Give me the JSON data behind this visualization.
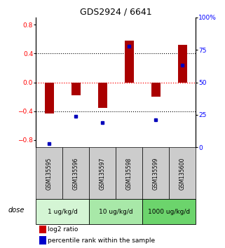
{
  "title": "GDS2924 / 6641",
  "samples": [
    "GSM135595",
    "GSM135596",
    "GSM135597",
    "GSM135598",
    "GSM135599",
    "GSM135600"
  ],
  "log2_ratio": [
    -0.43,
    -0.18,
    -0.35,
    0.58,
    -0.2,
    0.52
  ],
  "percentile_rank": [
    3,
    24,
    19,
    78,
    21,
    63
  ],
  "dose_groups": [
    {
      "label": "1 ug/kg/d",
      "color": "#d4f5d4"
    },
    {
      "label": "10 ug/kg/d",
      "color": "#a8e8a8"
    },
    {
      "label": "1000 ug/kg/d",
      "color": "#6cd46c"
    }
  ],
  "ylim": [
    -0.9,
    0.9
  ],
  "y2lim": [
    0,
    100
  ],
  "yticks": [
    -0.8,
    -0.4,
    0.0,
    0.4,
    0.8
  ],
  "y2ticks": [
    0,
    25,
    50,
    75,
    100
  ],
  "bar_color": "#aa0000",
  "dot_color": "#0000bb",
  "bar_width": 0.35,
  "sample_bg_color": "#cccccc",
  "legend_bar_color": "#cc0000",
  "legend_dot_color": "#0000cc"
}
